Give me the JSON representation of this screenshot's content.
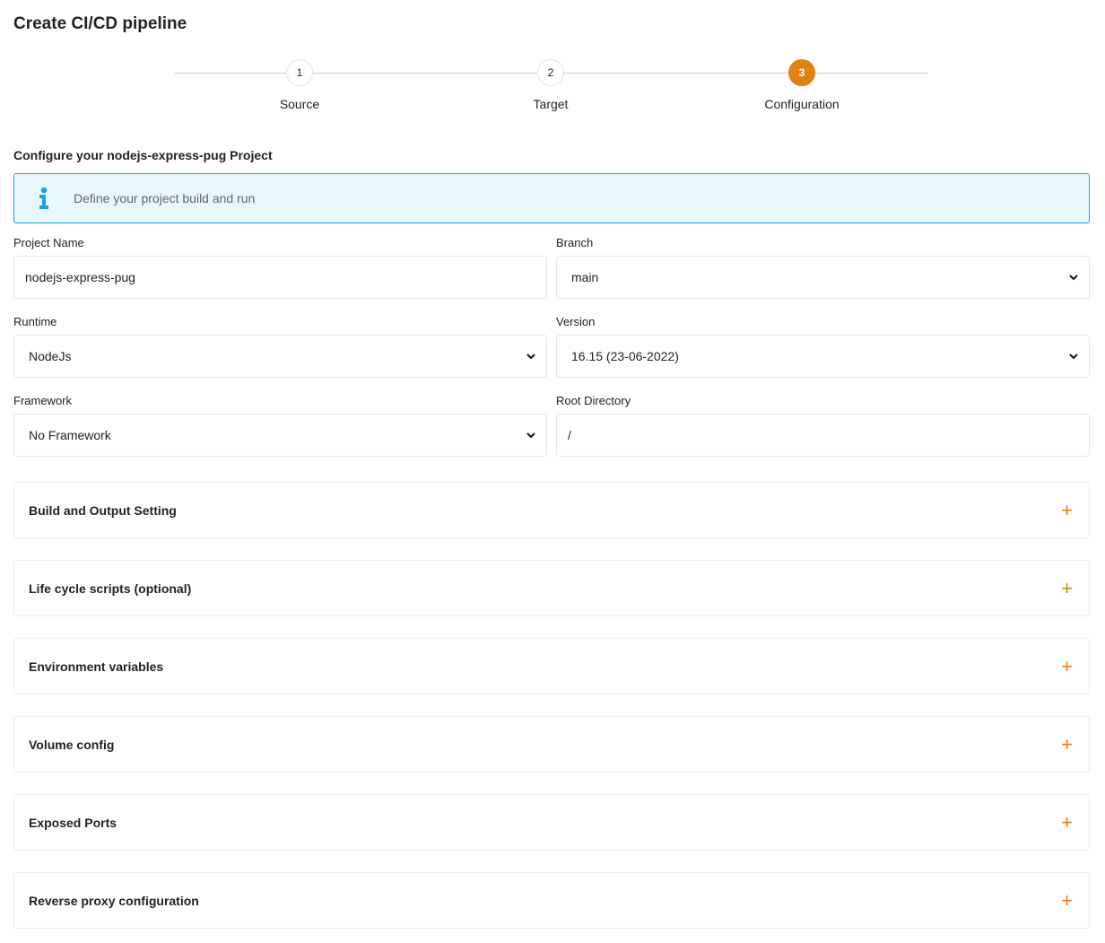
{
  "page": {
    "title": "Create CI/CD pipeline",
    "subtitle": "Configure your nodejs-express-pug Project"
  },
  "stepper": {
    "steps": [
      {
        "number": "1",
        "label": "Source",
        "active": false
      },
      {
        "number": "2",
        "label": "Target",
        "active": false
      },
      {
        "number": "3",
        "label": "Configuration",
        "active": true
      }
    ],
    "active_color": "#e08213"
  },
  "info": {
    "icon": "info-icon",
    "text": "Define your project build and run",
    "color": "#14a5e8"
  },
  "form": {
    "project_name": {
      "label": "Project Name",
      "value": "nodejs-express-pug"
    },
    "branch": {
      "label": "Branch",
      "value": "main"
    },
    "runtime": {
      "label": "Runtime",
      "value": "NodeJs"
    },
    "version": {
      "label": "Version",
      "value": "16.15 (23-06-2022)"
    },
    "framework": {
      "label": "Framework",
      "value": "No Framework"
    },
    "root_directory": {
      "label": "Root Directory",
      "value": "/"
    }
  },
  "sections": [
    {
      "title": "Build and Output Setting",
      "icon": "plus-icon"
    },
    {
      "title": "Life cycle scripts (optional)",
      "icon": "plus-icon"
    },
    {
      "title": "Environment variables",
      "icon": "plus-icon"
    },
    {
      "title": "Volume config",
      "icon": "plus-icon"
    },
    {
      "title": "Exposed Ports",
      "icon": "plus-icon"
    },
    {
      "title": "Reverse proxy configuration",
      "icon": "plus-icon"
    }
  ],
  "plus_symbol": "+"
}
